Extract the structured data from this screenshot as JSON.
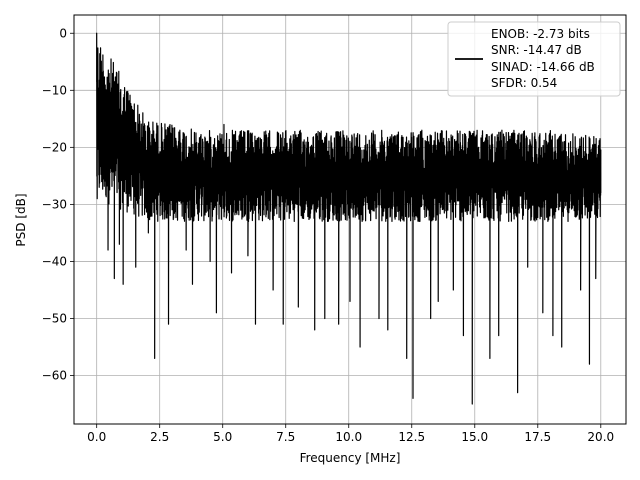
{
  "chart_data": {
    "type": "line",
    "title": "",
    "xlabel": "Frequency [MHz]",
    "ylabel": "PSD [dB]",
    "xlim": [
      -0.9,
      21.0
    ],
    "ylim": [
      -68.5,
      3.2
    ],
    "xticks": [
      0.0,
      2.5,
      5.0,
      7.5,
      10.0,
      12.5,
      15.0,
      17.5,
      20.0
    ],
    "xtick_labels": [
      "0.0",
      "2.5",
      "5.0",
      "7.5",
      "10.0",
      "12.5",
      "15.0",
      "17.5",
      "20.0"
    ],
    "yticks": [
      0,
      -10,
      -20,
      -30,
      -40,
      -50,
      -60
    ],
    "ytick_labels": [
      "0",
      "−10",
      "−20",
      "−30",
      "−40",
      "−50",
      "−60"
    ],
    "grid": true,
    "legend_placement": "upper-right",
    "legend_lines": [
      "ENOB: -2.73 bits",
      "SNR: -14.47 dB",
      "SINAD: -14.66 dB",
      "SFDR: 0.54"
    ],
    "series_color": "#000000",
    "grid_color": "#b0b0b0",
    "x": [
      0.0,
      0.02,
      0.05,
      0.1,
      0.15,
      0.2,
      0.3,
      0.45,
      0.55,
      0.7,
      0.8,
      0.9,
      1.05,
      1.3,
      1.55,
      1.8,
      2.05,
      2.3,
      2.6,
      2.85,
      3.3,
      3.55,
      3.8,
      4.3,
      4.5,
      4.75,
      5.05,
      5.35,
      5.65,
      6.0,
      6.3,
      6.65,
      7.0,
      7.4,
      7.7,
      8.0,
      8.4,
      8.65,
      9.05,
      9.3,
      9.6,
      10.05,
      10.45,
      10.9,
      11.2,
      11.55,
      11.85,
      12.3,
      12.55,
      12.9,
      13.25,
      13.55,
      13.9,
      14.15,
      14.55,
      14.9,
      15.3,
      15.6,
      15.95,
      16.3,
      16.7,
      17.1,
      17.4,
      17.7,
      18.1,
      18.45,
      18.8,
      19.2,
      19.55,
      19.8,
      20.0
    ],
    "y": [
      0,
      -29,
      -5,
      -27,
      -14,
      -26,
      -15,
      -38,
      -17,
      -43,
      -16,
      -37,
      -44,
      -18,
      -41,
      -22,
      -35,
      -57,
      -20,
      -51,
      -17,
      -38,
      -44,
      -19,
      -40,
      -49,
      -16,
      -42,
      -18,
      -39,
      -51,
      -19,
      -45,
      -51,
      -18,
      -48,
      -20,
      -52,
      -50,
      -18,
      -51,
      -47,
      -55,
      -19,
      -50,
      -52,
      -20,
      -57,
      -64,
      -17,
      -50,
      -47,
      -19,
      -45,
      -53,
      -65,
      -20,
      -57,
      -53,
      -19,
      -63,
      -41,
      -20,
      -49,
      -53,
      -55,
      -19,
      -45,
      -58,
      -43,
      -28
    ],
    "envelope_upper": [
      0,
      -15,
      -17,
      -17,
      -17,
      -17,
      -17,
      -17,
      -17,
      -17,
      -18
    ],
    "envelope_lower": [
      -29,
      -33,
      -33,
      -33,
      -33,
      -33,
      -33,
      -33,
      -33,
      -33,
      -33
    ],
    "envelope_x": [
      0.0,
      2.0,
      4.0,
      6.0,
      8.0,
      10.0,
      12.0,
      14.0,
      16.0,
      18.0,
      20.0
    ]
  }
}
